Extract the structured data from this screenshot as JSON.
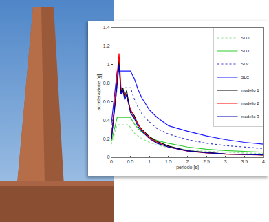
{
  "chart_data": {
    "type": "line",
    "x_label": "periodo [s]",
    "y_label": "accelerazione [g]",
    "x": [
      0,
      0.05,
      0.1,
      0.15,
      0.2,
      0.25,
      0.3,
      0.35,
      0.4,
      0.45,
      0.5,
      0.6,
      0.7,
      0.8,
      1.0,
      1.2,
      1.5,
      2,
      2.5,
      3,
      3.5,
      4
    ],
    "xlim": [
      0,
      4
    ],
    "xticks": [
      0,
      0.5,
      1,
      1.5,
      2,
      2.5,
      3,
      3.5,
      4
    ],
    "ylim": [
      0,
      1.4
    ],
    "yticks": [
      0,
      0.2,
      0.4,
      0.6,
      0.8,
      1,
      1.2,
      1.4
    ],
    "grid": false,
    "legend": "upper right",
    "series": [
      {
        "name": "SLO",
        "color": "#8fdc8f",
        "line_style": "dotted",
        "values": [
          0.14,
          0.21,
          0.28,
          0.35,
          0.35,
          0.35,
          0.35,
          0.35,
          0.35,
          0.35,
          0.32,
          0.26,
          0.23,
          0.2,
          0.16,
          0.13,
          0.105,
          0.079,
          0.063,
          0.053,
          0.045,
          0.04
        ]
      },
      {
        "name": "SLD",
        "color": "#33cc33",
        "line_style": "solid",
        "values": [
          0.17,
          0.26,
          0.35,
          0.43,
          0.43,
          0.43,
          0.43,
          0.43,
          0.43,
          0.43,
          0.43,
          0.36,
          0.31,
          0.27,
          0.22,
          0.18,
          0.15,
          0.11,
          0.086,
          0.072,
          0.061,
          0.054
        ]
      },
      {
        "name": "SLV",
        "color": "#3a3ad0",
        "line_style": "dotted",
        "values": [
          0.3,
          0.45,
          0.6,
          0.75,
          0.75,
          0.75,
          0.75,
          0.75,
          0.75,
          0.75,
          0.75,
          0.63,
          0.54,
          0.47,
          0.38,
          0.31,
          0.25,
          0.19,
          0.15,
          0.125,
          0.107,
          0.094
        ]
      },
      {
        "name": "SLC",
        "color": "#1a1aff",
        "line_style": "solid",
        "values": [
          0.37,
          0.55,
          0.74,
          0.93,
          0.93,
          0.93,
          0.93,
          0.93,
          0.93,
          0.93,
          0.93,
          0.85,
          0.73,
          0.64,
          0.51,
          0.43,
          0.34,
          0.28,
          0.23,
          0.19,
          0.16,
          0.14
        ]
      },
      {
        "name": "modello 1",
        "color": "#000000",
        "line_style": "solid",
        "values": [
          0.2,
          0.4,
          0.6,
          0.8,
          1.05,
          0.7,
          0.75,
          0.65,
          0.72,
          0.6,
          0.5,
          0.45,
          0.35,
          0.3,
          0.22,
          0.17,
          0.12,
          0.07,
          0.05,
          0.035,
          0.03,
          0.025
        ]
      },
      {
        "name": "modello 2",
        "color": "#ff0000",
        "line_style": "solid",
        "values": [
          0.2,
          0.42,
          0.63,
          0.85,
          1.12,
          0.75,
          0.7,
          0.68,
          0.66,
          0.58,
          0.52,
          0.43,
          0.36,
          0.29,
          0.21,
          0.16,
          0.11,
          0.065,
          0.045,
          0.033,
          0.028,
          0.024
        ]
      },
      {
        "name": "modello 3",
        "color": "#0000b0",
        "line_style": "solid",
        "values": [
          0.2,
          0.38,
          0.58,
          0.78,
          1.0,
          0.68,
          0.72,
          0.62,
          0.68,
          0.57,
          0.48,
          0.42,
          0.33,
          0.28,
          0.2,
          0.15,
          0.11,
          0.068,
          0.048,
          0.034,
          0.029,
          0.025
        ]
      }
    ]
  }
}
